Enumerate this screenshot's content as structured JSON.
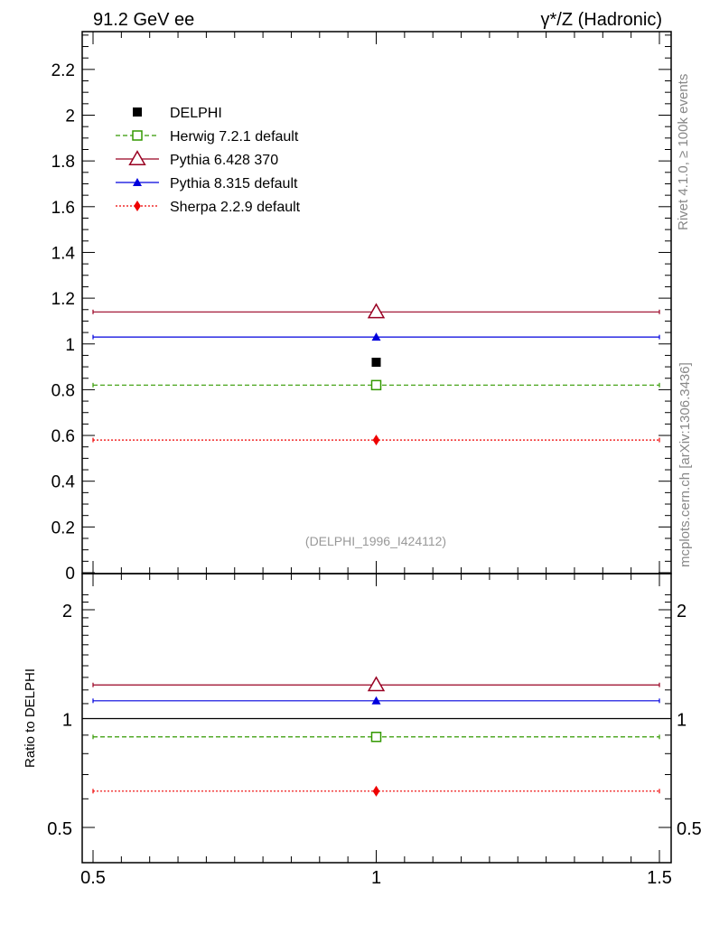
{
  "header": {
    "title_left": "91.2 GeV ee",
    "title_right": "γ*/Z (Hadronic)"
  },
  "side_labels": {
    "rivet": "Rivet 4.1.0, ≥ 100k events",
    "mcplots": "mcplots.cern.ch [arXiv:1306.3436]"
  },
  "chart_data": {
    "type": "line",
    "analysis_id": "(DELPHI_1996_I424112)",
    "x": [
      1.0
    ],
    "xlim": [
      0.5,
      1.5
    ],
    "xticks": [
      "0.5",
      "1",
      "1.5"
    ],
    "main": {
      "ylim": [
        0,
        2.36
      ],
      "yticks": [
        "0",
        "0.2",
        "0.4",
        "0.6",
        "0.8",
        "1",
        "1.2",
        "1.4",
        "1.6",
        "1.8",
        "2",
        "2.2"
      ],
      "series": [
        {
          "name": "DELPHI",
          "value": 0.92,
          "color": "#000000",
          "marker": "filled-square",
          "line": "none"
        },
        {
          "name": "Herwig 7.2.1 default",
          "value": 0.82,
          "color": "#339900",
          "marker": "open-square",
          "line": "dashed"
        },
        {
          "name": "Pythia 6.428 370",
          "value": 1.14,
          "color": "#990022",
          "marker": "open-triangle",
          "line": "solid"
        },
        {
          "name": "Pythia 8.315 default",
          "value": 1.03,
          "color": "#0000dd",
          "marker": "filled-triangle",
          "line": "solid"
        },
        {
          "name": "Sherpa 2.2.9 default",
          "value": 0.58,
          "color": "#ee0000",
          "marker": "filled-diamond",
          "line": "dotted"
        }
      ]
    },
    "ratio": {
      "ylabel": "Ratio to DELPHI",
      "ylim": [
        0.4,
        2.3
      ],
      "yticks": [
        "0.5",
        "1",
        "2"
      ],
      "values": {
        "Herwig 7.2.1 default": 0.89,
        "Pythia 6.428 370": 1.239,
        "Pythia 8.315 default": 1.12,
        "Sherpa 2.2.9 default": 0.63
      }
    }
  }
}
